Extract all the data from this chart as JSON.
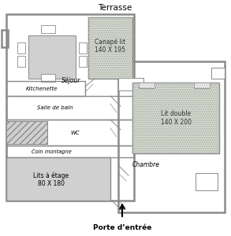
{
  "bg_color": "#ffffff",
  "wall_color": "#8a8a8a",
  "lw_outer": 1.8,
  "lw_inner": 1.0,
  "lw_thin": 0.7,
  "fill_canape": "#d8e0d0",
  "fill_lit": "#d8e0d0",
  "fill_lits_etage": "#d0d0d0",
  "fill_hatch_color": "#c0c0c0",
  "title_above": "Terrasse",
  "title_below": "Porte d’entrée",
  "labels": {
    "canape": "Canapé lit\n140 X 195",
    "sejour": "Séjour",
    "kitchenette": "Kitchenette",
    "salle_de_bain": "Salle de bain",
    "wc": "WC",
    "coin_montagne": "Coin montagne",
    "lits": "Lits à étage\n80 X 180",
    "lit_double": "Lit double\n140 X 200",
    "chambre": "Chambre"
  }
}
